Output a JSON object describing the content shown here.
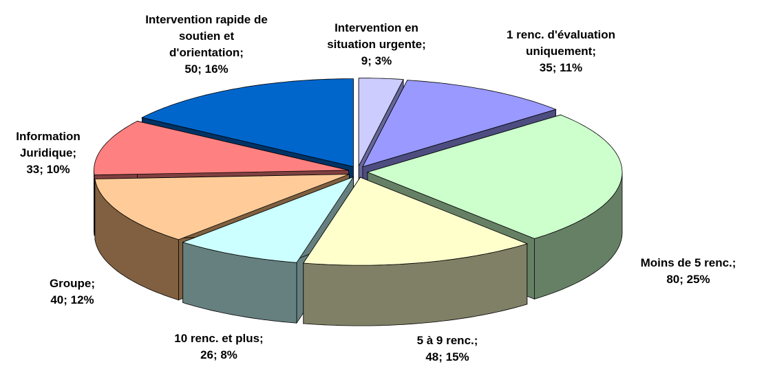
{
  "chart_data": {
    "type": "pie3d",
    "categories": [
      "Intervention en situation urgente;",
      "1 renc. d'évaluation uniquement;",
      "Moins de 5 renc.;",
      "5 à 9 renc.;",
      "10 renc. et plus;",
      "Groupe;",
      "Information Juridique;",
      "Intervention rapide de soutien et d'orientation;"
    ],
    "values": [
      9,
      35,
      80,
      48,
      26,
      40,
      33,
      50
    ],
    "value_labels": [
      "9; 3%",
      "35; 11%",
      "80; 25%",
      "48; 15%",
      "26; 8%",
      "40; 12%",
      "33; 10%",
      "50; 16%"
    ],
    "colors": [
      "#ccccff",
      "#9999ff",
      "#ccffcc",
      "#ffffcc",
      "#ccffff",
      "#ffcc99",
      "#ff8080",
      "#0066cc"
    ],
    "side_colors": [
      "#666699",
      "#4d4d80",
      "#668066",
      "#808066",
      "#668080",
      "#806040",
      "#804040",
      "#003366"
    ]
  }
}
